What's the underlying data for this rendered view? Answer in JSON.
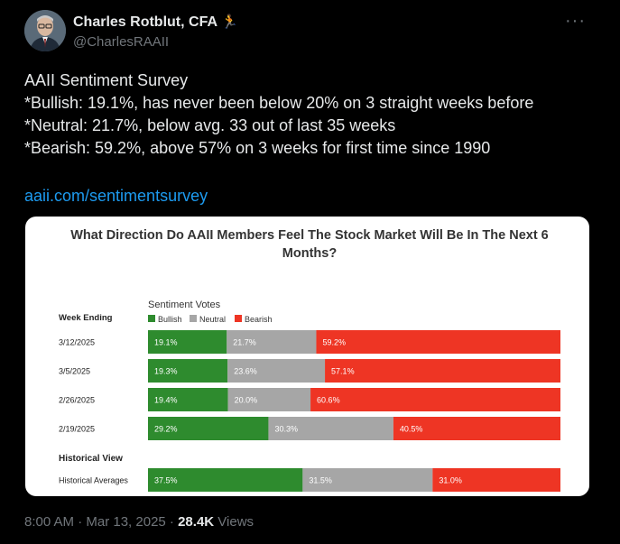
{
  "author": {
    "name": "Charles Rotblut, CFA",
    "emoji": "🏃",
    "handle": "@CharlesRAAII"
  },
  "more_icon": "more-icon",
  "tweet": {
    "lines": [
      "AAII Sentiment Survey",
      "*Bullish: 19.1%, has never been below 20% on 3 straight weeks before",
      "*Neutral: 21.7%, below avg. 33 out of last 35 weeks",
      "*Bearish: 59.2%, above 57% on 3 weeks for first time since 1990"
    ],
    "link": "aaii.com/sentimentsurvey"
  },
  "meta": {
    "time": "8:00 AM · Mar 13, 2025 · ",
    "views_count": "28.4K",
    "views_label": " Views"
  },
  "colors": {
    "bullish": "#2e8b2e",
    "neutral": "#a6a6a6",
    "bearish": "#ee3524"
  },
  "chart_data": {
    "type": "bar",
    "stacked": true,
    "orientation": "horizontal",
    "title": "What Direction Do AAII Members Feel The Stock Market Will Be In The Next 6 Months?",
    "legend_title": "Sentiment Votes",
    "legend": [
      "Bullish",
      "Neutral",
      "Bearish"
    ],
    "row_header": "Week Ending",
    "categories": [
      "3/12/2025",
      "3/5/2025",
      "2/26/2025",
      "2/19/2025"
    ],
    "series": [
      {
        "name": "Bullish",
        "values": [
          19.1,
          19.3,
          19.4,
          29.2
        ]
      },
      {
        "name": "Neutral",
        "values": [
          21.7,
          23.6,
          20.0,
          30.3
        ]
      },
      {
        "name": "Bearish",
        "values": [
          59.2,
          57.1,
          60.6,
          40.5
        ]
      }
    ],
    "labels": [
      [
        "19.1%",
        "21.7%",
        "59.2%"
      ],
      [
        "19.3%",
        "23.6%",
        "57.1%"
      ],
      [
        "19.4%",
        "20.0%",
        "60.6%"
      ],
      [
        "29.2%",
        "30.3%",
        "40.5%"
      ]
    ],
    "historical": {
      "header": "Historical View",
      "category": "Historical Averages",
      "values": [
        37.5,
        31.5,
        31.0
      ],
      "labels": [
        "37.5%",
        "31.5%",
        "31.0%"
      ]
    }
  }
}
